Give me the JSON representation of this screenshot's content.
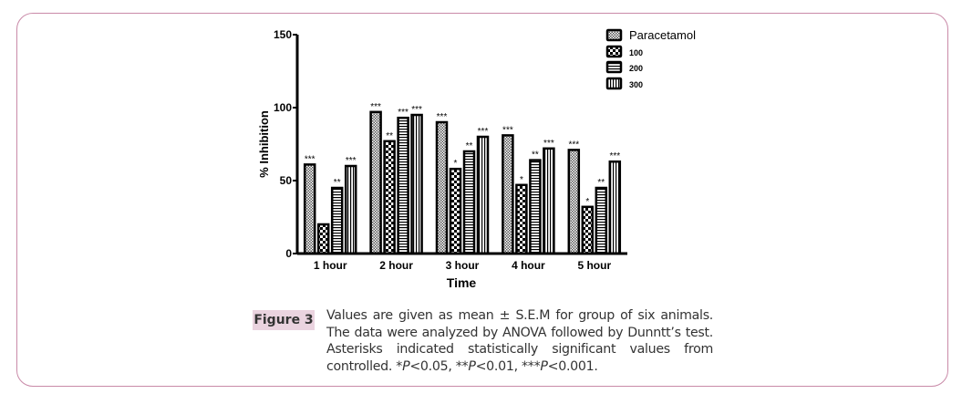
{
  "chart_data": {
    "type": "bar",
    "xlabel": "Time",
    "ylabel": "% Inhibition",
    "ylim": [
      0,
      150
    ],
    "yticks": [
      0,
      50,
      100,
      150
    ],
    "categories": [
      "1 hour",
      "2 hour",
      "3 hour",
      "4 hour",
      "5 hour"
    ],
    "legend_position": "top-right",
    "series": [
      {
        "name": "Paracetamol",
        "pattern": "crosshatch",
        "values": [
          61,
          97,
          90,
          81,
          71
        ],
        "annotations": [
          "***",
          "***",
          "***",
          "***",
          "***"
        ]
      },
      {
        "name": "100",
        "pattern": "checker",
        "values": [
          20,
          77,
          58,
          47,
          32
        ],
        "annotations": [
          "",
          "**",
          "*",
          "*",
          "*"
        ]
      },
      {
        "name": "200",
        "pattern": "horizontal",
        "values": [
          45,
          93,
          70,
          64,
          45
        ],
        "annotations": [
          "**",
          "***",
          "**",
          "**",
          "**"
        ]
      },
      {
        "name": "300",
        "pattern": "vertical",
        "values": [
          60,
          95,
          80,
          72,
          63
        ],
        "annotations": [
          "***",
          "***",
          "***",
          "***",
          "***"
        ]
      }
    ]
  },
  "figure": {
    "label": "Figure 3",
    "caption_parts": [
      "Values are given as mean ± S.E.M for group of six animals. The data were analyzed by ANOVA followed by Dunntt’s test. Asterisks indicated statistically significant values from controlled. *",
      "P",
      "<0.05, **",
      "P",
      "<0.01, ***",
      "P",
      "<0.001."
    ]
  }
}
